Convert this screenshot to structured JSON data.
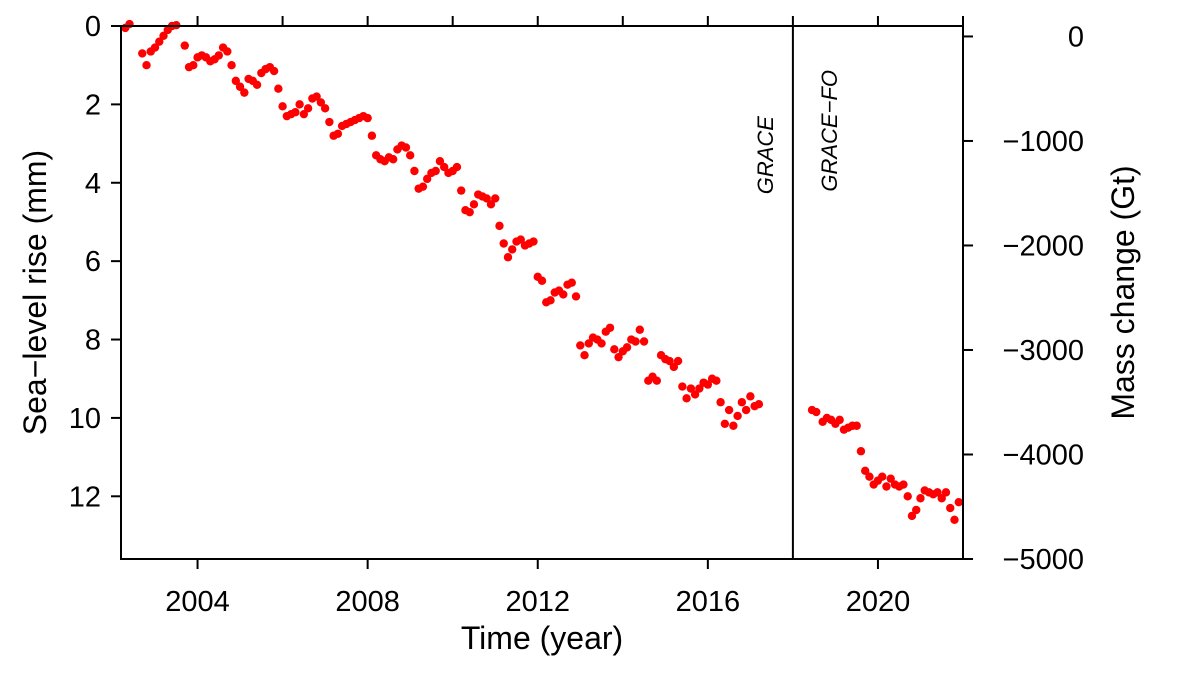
{
  "chart_data": {
    "type": "scatter",
    "xlabel": "Time (year)",
    "ylabel_left": "Sea−level rise (mm)",
    "ylabel_right": "Mass change (Gt)",
    "xlim": [
      2002.2,
      2022.0
    ],
    "ylim_left": [
      0,
      13.6
    ],
    "left_axis_inverted": true,
    "ylim_right": [
      100,
      -5000
    ],
    "x_ticks": [
      2004,
      2008,
      2012,
      2016,
      2020
    ],
    "x_tick_labels": [
      "2004",
      "2008",
      "2012",
      "2016",
      "2020"
    ],
    "y_ticks_left": [
      0,
      2,
      4,
      6,
      8,
      10,
      12
    ],
    "y_tick_labels_left": [
      "0",
      "2",
      "4",
      "6",
      "8",
      "10",
      "12"
    ],
    "y_ticks_right": [
      0,
      -1000,
      -2000,
      -3000,
      -4000,
      -5000
    ],
    "y_tick_labels_right": [
      "0",
      "−1000",
      "−2000",
      "−3000",
      "−4000",
      "−5000"
    ],
    "mission_divider_x": 2018.0,
    "annotations": [
      "GRACE",
      "GRACE−FO"
    ],
    "marker_color": "#ff0000",
    "grid": false,
    "series": [
      {
        "points": [
          [
            2002.3,
            0.05
          ],
          [
            2002.4,
            -0.05
          ],
          [
            2002.7,
            0.7
          ],
          [
            2002.8,
            1.0
          ],
          [
            2002.9,
            0.65
          ],
          [
            2003.0,
            0.55
          ],
          [
            2003.1,
            0.4
          ],
          [
            2003.2,
            0.25
          ],
          [
            2003.3,
            0.1
          ],
          [
            2003.4,
            0.0
          ],
          [
            2003.5,
            -0.02
          ],
          [
            2003.7,
            0.5
          ],
          [
            2003.8,
            1.05
          ],
          [
            2003.9,
            1.0
          ],
          [
            2004.0,
            0.8
          ],
          [
            2004.1,
            0.75
          ],
          [
            2004.2,
            0.8
          ],
          [
            2004.3,
            0.9
          ],
          [
            2004.4,
            0.85
          ],
          [
            2004.5,
            0.75
          ],
          [
            2004.6,
            0.55
          ],
          [
            2004.7,
            0.65
          ],
          [
            2004.8,
            1.0
          ],
          [
            2004.9,
            1.4
          ],
          [
            2005.0,
            1.55
          ],
          [
            2005.1,
            1.7
          ],
          [
            2005.2,
            1.35
          ],
          [
            2005.3,
            1.4
          ],
          [
            2005.4,
            1.5
          ],
          [
            2005.5,
            1.2
          ],
          [
            2005.6,
            1.1
          ],
          [
            2005.7,
            1.05
          ],
          [
            2005.8,
            1.15
          ],
          [
            2005.9,
            1.6
          ],
          [
            2006.0,
            2.05
          ],
          [
            2006.1,
            2.3
          ],
          [
            2006.2,
            2.25
          ],
          [
            2006.3,
            2.2
          ],
          [
            2006.4,
            2.0
          ],
          [
            2006.5,
            2.25
          ],
          [
            2006.6,
            2.1
          ],
          [
            2006.7,
            1.85
          ],
          [
            2006.8,
            1.8
          ],
          [
            2006.9,
            1.95
          ],
          [
            2007.0,
            2.1
          ],
          [
            2007.1,
            2.45
          ],
          [
            2007.2,
            2.8
          ],
          [
            2007.3,
            2.75
          ],
          [
            2007.4,
            2.55
          ],
          [
            2007.5,
            2.5
          ],
          [
            2007.6,
            2.45
          ],
          [
            2007.7,
            2.4
          ],
          [
            2007.8,
            2.35
          ],
          [
            2007.9,
            2.3
          ],
          [
            2008.0,
            2.35
          ],
          [
            2008.1,
            2.8
          ],
          [
            2008.2,
            3.3
          ],
          [
            2008.3,
            3.4
          ],
          [
            2008.4,
            3.45
          ],
          [
            2008.5,
            3.35
          ],
          [
            2008.6,
            3.4
          ],
          [
            2008.7,
            3.15
          ],
          [
            2008.8,
            3.05
          ],
          [
            2008.9,
            3.1
          ],
          [
            2009.0,
            3.3
          ],
          [
            2009.1,
            3.7
          ],
          [
            2009.2,
            4.15
          ],
          [
            2009.3,
            4.1
          ],
          [
            2009.4,
            3.9
          ],
          [
            2009.5,
            3.75
          ],
          [
            2009.6,
            3.7
          ],
          [
            2009.7,
            3.45
          ],
          [
            2009.8,
            3.6
          ],
          [
            2009.9,
            3.75
          ],
          [
            2010.0,
            3.7
          ],
          [
            2010.1,
            3.6
          ],
          [
            2010.2,
            4.2
          ],
          [
            2010.3,
            4.7
          ],
          [
            2010.4,
            4.75
          ],
          [
            2010.5,
            4.55
          ],
          [
            2010.6,
            4.3
          ],
          [
            2010.7,
            4.35
          ],
          [
            2010.8,
            4.4
          ],
          [
            2010.9,
            4.55
          ],
          [
            2011.0,
            4.4
          ],
          [
            2011.1,
            5.1
          ],
          [
            2011.2,
            5.55
          ],
          [
            2011.3,
            5.9
          ],
          [
            2011.4,
            5.7
          ],
          [
            2011.5,
            5.5
          ],
          [
            2011.6,
            5.45
          ],
          [
            2011.7,
            5.6
          ],
          [
            2011.8,
            5.55
          ],
          [
            2011.9,
            5.5
          ],
          [
            2012.0,
            6.4
          ],
          [
            2012.1,
            6.5
          ],
          [
            2012.2,
            7.05
          ],
          [
            2012.3,
            7.0
          ],
          [
            2012.4,
            6.8
          ],
          [
            2012.5,
            6.75
          ],
          [
            2012.6,
            6.85
          ],
          [
            2012.7,
            6.6
          ],
          [
            2012.8,
            6.55
          ],
          [
            2012.9,
            6.9
          ],
          [
            2013.0,
            8.15
          ],
          [
            2013.1,
            8.4
          ],
          [
            2013.2,
            8.1
          ],
          [
            2013.3,
            7.95
          ],
          [
            2013.4,
            8.0
          ],
          [
            2013.5,
            8.1
          ],
          [
            2013.6,
            7.8
          ],
          [
            2013.7,
            7.7
          ],
          [
            2013.8,
            8.25
          ],
          [
            2013.9,
            8.45
          ],
          [
            2014.0,
            8.3
          ],
          [
            2014.1,
            8.2
          ],
          [
            2014.2,
            8.0
          ],
          [
            2014.3,
            8.05
          ],
          [
            2014.4,
            7.75
          ],
          [
            2014.5,
            8.05
          ],
          [
            2014.6,
            9.05
          ],
          [
            2014.7,
            8.95
          ],
          [
            2014.8,
            9.05
          ],
          [
            2014.9,
            8.4
          ],
          [
            2015.0,
            8.5
          ],
          [
            2015.1,
            8.55
          ],
          [
            2015.2,
            8.7
          ],
          [
            2015.3,
            8.55
          ],
          [
            2015.4,
            9.2
          ],
          [
            2015.5,
            9.5
          ],
          [
            2015.6,
            9.25
          ],
          [
            2015.7,
            9.4
          ],
          [
            2015.8,
            9.25
          ],
          [
            2015.9,
            9.1
          ],
          [
            2016.0,
            9.15
          ],
          [
            2016.1,
            9.0
          ],
          [
            2016.2,
            9.05
          ],
          [
            2016.3,
            9.6
          ],
          [
            2016.4,
            10.15
          ],
          [
            2016.5,
            9.8
          ],
          [
            2016.6,
            10.2
          ],
          [
            2016.7,
            9.95
          ],
          [
            2016.8,
            9.6
          ],
          [
            2016.9,
            9.8
          ],
          [
            2017.0,
            9.45
          ],
          [
            2017.1,
            9.7
          ],
          [
            2017.2,
            9.65
          ],
          [
            2018.45,
            9.8
          ],
          [
            2018.55,
            9.85
          ],
          [
            2018.7,
            10.1
          ],
          [
            2018.8,
            10.0
          ],
          [
            2018.9,
            10.05
          ],
          [
            2019.0,
            10.15
          ],
          [
            2019.1,
            10.05
          ],
          [
            2019.2,
            10.3
          ],
          [
            2019.3,
            10.25
          ],
          [
            2019.4,
            10.2
          ],
          [
            2019.5,
            10.2
          ],
          [
            2019.6,
            10.85
          ],
          [
            2019.7,
            11.35
          ],
          [
            2019.8,
            11.5
          ],
          [
            2019.9,
            11.7
          ],
          [
            2020.0,
            11.6
          ],
          [
            2020.1,
            11.5
          ],
          [
            2020.2,
            11.75
          ],
          [
            2020.3,
            11.55
          ],
          [
            2020.4,
            11.7
          ],
          [
            2020.5,
            11.75
          ],
          [
            2020.6,
            11.7
          ],
          [
            2020.7,
            12.0
          ],
          [
            2020.8,
            12.5
          ],
          [
            2020.9,
            12.35
          ],
          [
            2021.0,
            12.05
          ],
          [
            2021.1,
            11.85
          ],
          [
            2021.2,
            11.9
          ],
          [
            2021.3,
            11.95
          ],
          [
            2021.4,
            11.9
          ],
          [
            2021.5,
            12.05
          ],
          [
            2021.6,
            11.9
          ],
          [
            2021.7,
            12.3
          ],
          [
            2021.8,
            12.6
          ],
          [
            2021.9,
            12.15
          ]
        ]
      }
    ]
  }
}
